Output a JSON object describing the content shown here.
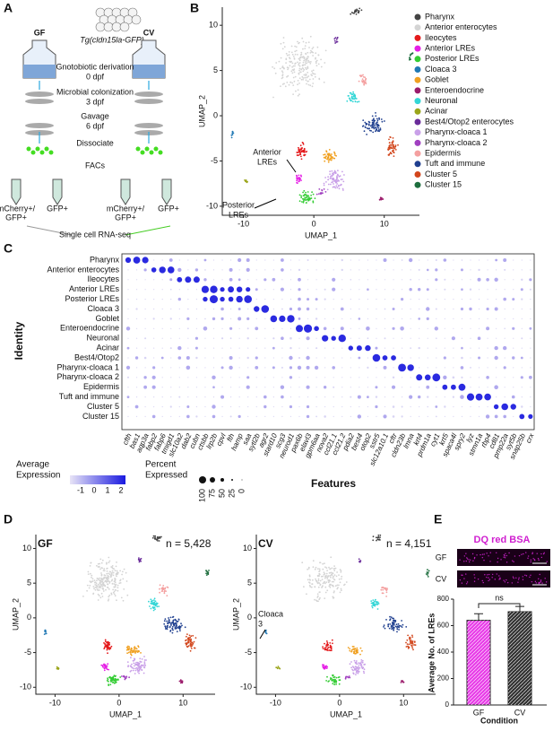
{
  "panel_labels": [
    "A",
    "B",
    "C",
    "D",
    "E"
  ],
  "schematic": {
    "transgene": "Tg(cldn15la-GFP)",
    "groups": [
      "GF",
      "CV"
    ],
    "steps": [
      [
        "Gnotobiotic derivation",
        "0 dpf"
      ],
      [
        "Microbial colonization",
        "3 dpf"
      ],
      [
        "Gavage",
        "6 dpf"
      ],
      [
        "Dissociate"
      ],
      [
        "FACs"
      ]
    ],
    "sorts": [
      [
        "mCherry+/",
        "GFP+"
      ],
      [
        "GFP+"
      ],
      [
        "mCherry+/",
        "GFP+"
      ],
      [
        "GFP+"
      ]
    ],
    "output": "Single cell RNA-seq"
  },
  "umap": {
    "x_label": "UMAP_1",
    "y_label": "UMAP_2",
    "xticks": [
      -10,
      0,
      10
    ],
    "yticks": [
      -10,
      -5,
      0,
      5,
      10
    ],
    "legend": [
      {
        "name": "Pharynx",
        "color": "#444444"
      },
      {
        "name": "Anterior enterocytes",
        "color": "#d4d4d4"
      },
      {
        "name": "Ileocytes",
        "color": "#e41a1c"
      },
      {
        "name": "Anterior LREs",
        "color": "#e51ee5"
      },
      {
        "name": "Posterior LREs",
        "color": "#33cc33"
      },
      {
        "name": "Cloaca 3",
        "color": "#1f78b4"
      },
      {
        "name": "Goblet",
        "color": "#f0a020"
      },
      {
        "name": "Enteroendocrine",
        "color": "#9b1b6b"
      },
      {
        "name": "Neuronal",
        "color": "#33d6d6"
      },
      {
        "name": "Acinar",
        "color": "#9aa51a"
      },
      {
        "name": "Best4/Otop2 enterocytes",
        "color": "#6a2c9a"
      },
      {
        "name": "Pharynx-cloaca 1",
        "color": "#c9a0e8"
      },
      {
        "name": "Pharynx-cloaca 2",
        "color": "#a040c0"
      },
      {
        "name": "Epidermis",
        "color": "#f4a0a0"
      },
      {
        "name": "Tuft and immune",
        "color": "#1f3f8f"
      },
      {
        "name": "Cluster 5",
        "color": "#d2461c"
      },
      {
        "name": "Cluster 15",
        "color": "#1e6e3e"
      }
    ],
    "annotations": [
      [
        "Anterior",
        "LREs"
      ],
      [
        "Posterior",
        "LREs"
      ]
    ]
  },
  "dotplot": {
    "identities": [
      "Pharynx",
      "Anterior enterocytes",
      "Ileocytes",
      "Anterior LREs",
      "Posterior LREs",
      "Cloaca 3",
      "Goblet",
      "Enteroendocrine",
      "Neuronal",
      "Acinar",
      "Best4/Otop2",
      "Pharynx-cloaca 1",
      "Pharynx-cloaca 2",
      "Epidermis",
      "Tuft and immune",
      "Cluster 5",
      "Cluster 15"
    ],
    "features": [
      "cfth",
      "bas1",
      "aqp3a",
      "fabp2",
      "fabp6",
      "tmigd1",
      "slc10a2",
      "dab2",
      "cubn",
      "ctsbb",
      "lrp2b",
      "cpvl",
      "fth",
      "hamp",
      "saa",
      "sytl2b",
      "agr2",
      "stard10",
      "scg3",
      "neurod1",
      "pax6b",
      "elavl3",
      "gpm6aa",
      "nova2",
      "ccl21.1",
      "ccl21.2",
      "pdia2",
      "best4",
      "otop2",
      "sstr5",
      "slc12a10.1",
      "cftr",
      "cldn23b",
      "lmna",
      "krt4",
      "prdm1a",
      "cyt1",
      "krt5",
      "spaca4l",
      "spry2",
      "lyz",
      "stmn1a",
      "rbp4",
      "cd81",
      "pmp22a",
      "syt5b",
      "snap25b",
      "crx"
    ],
    "x_label": "Features",
    "y_label": "Identity",
    "color_legend": {
      "title": [
        "Average",
        "Expression"
      ],
      "ticks": [
        -1,
        0,
        1,
        2
      ]
    },
    "size_legend": {
      "title": [
        "Percent",
        "Expressed"
      ],
      "ticks": [
        100,
        75,
        50,
        25,
        0
      ]
    }
  },
  "conditions": [
    {
      "name": "GF",
      "n_label": "n = 5,428"
    },
    {
      "name": "CV",
      "n_label": "n = 4,151",
      "annotation": [
        "Cloaca",
        "3"
      ]
    }
  ],
  "chart_data": {
    "type": "bar",
    "title": "DQ red BSA",
    "image_labels": [
      "GF",
      "CV"
    ],
    "categories": [
      "GF",
      "CV"
    ],
    "values": [
      640,
      705
    ],
    "errors": [
      50,
      40
    ],
    "ylim": [
      0,
      800
    ],
    "yticks": [
      0,
      200,
      400,
      600,
      800
    ],
    "y_label": "Average No. of LREs",
    "x_label": "Condition",
    "annotation": "ns",
    "colors": [
      "#e83ee8",
      "#333333"
    ]
  }
}
